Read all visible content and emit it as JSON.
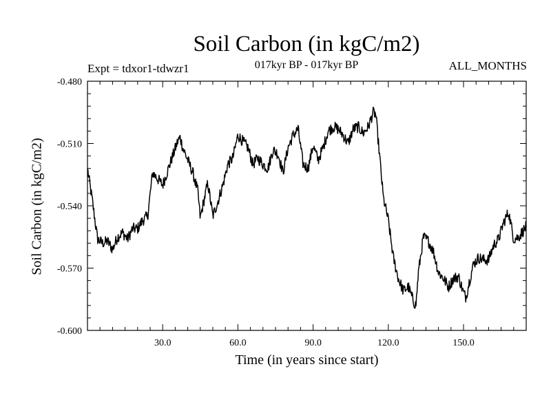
{
  "header": {
    "title": "Soil Carbon (in kgC/m2)",
    "expt": "Expt = tdxor1-tdwzr1",
    "period": "017kyr BP - 017kyr BP",
    "months": "ALL_MONTHS"
  },
  "chart_data": {
    "type": "line",
    "title": "Soil Carbon (in kgC/m2)",
    "xlabel": "Time (in years since start)",
    "ylabel": "Soil Carbon (in kgC/m2)",
    "xlim": [
      0,
      175
    ],
    "ylim": [
      -0.6,
      -0.48
    ],
    "x_ticks": [
      30,
      60,
      90,
      120,
      150
    ],
    "x_tick_labels": [
      "30.0",
      "60.0",
      "90.0",
      "120.0",
      "150.0"
    ],
    "y_ticks": [
      -0.48,
      -0.51,
      -0.54,
      -0.57,
      -0.6
    ],
    "y_tick_labels": [
      "-0.480",
      "-0.510",
      "-0.540",
      "-0.570",
      "-0.600"
    ],
    "line_color": "#000000",
    "series": [
      {
        "name": "Soil Carbon",
        "x": [
          0,
          2,
          4,
          6,
          8,
          10,
          12,
          14,
          16,
          18,
          20,
          22,
          24,
          26,
          28,
          30,
          32,
          34,
          36,
          37,
          38,
          40,
          42,
          44,
          45,
          46,
          48,
          50,
          52,
          54,
          56,
          58,
          60,
          62,
          64,
          66,
          68,
          70,
          72,
          74,
          76,
          78,
          80,
          82,
          84,
          86,
          88,
          90,
          92,
          94,
          96,
          98,
          100,
          102,
          104,
          106,
          108,
          110,
          112,
          114,
          115,
          116,
          118,
          120,
          122,
          124,
          126,
          128,
          130,
          131,
          132,
          134,
          136,
          138,
          140,
          142,
          144,
          146,
          148,
          150,
          151,
          152,
          154,
          156,
          158,
          160,
          162,
          164,
          166,
          168,
          170,
          172,
          175
        ],
        "values": [
          -0.522,
          -0.538,
          -0.556,
          -0.558,
          -0.557,
          -0.561,
          -0.555,
          -0.553,
          -0.556,
          -0.551,
          -0.551,
          -0.547,
          -0.545,
          -0.524,
          -0.527,
          -0.53,
          -0.523,
          -0.516,
          -0.509,
          -0.507,
          -0.512,
          -0.518,
          -0.524,
          -0.533,
          -0.546,
          -0.54,
          -0.529,
          -0.545,
          -0.538,
          -0.53,
          -0.52,
          -0.517,
          -0.506,
          -0.509,
          -0.512,
          -0.52,
          -0.517,
          -0.52,
          -0.522,
          -0.513,
          -0.515,
          -0.524,
          -0.512,
          -0.506,
          -0.503,
          -0.52,
          -0.522,
          -0.511,
          -0.518,
          -0.512,
          -0.504,
          -0.502,
          -0.503,
          -0.506,
          -0.51,
          -0.503,
          -0.502,
          -0.505,
          -0.502,
          -0.495,
          -0.496,
          -0.509,
          -0.536,
          -0.547,
          -0.565,
          -0.575,
          -0.581,
          -0.579,
          -0.586,
          -0.588,
          -0.572,
          -0.555,
          -0.557,
          -0.562,
          -0.572,
          -0.575,
          -0.579,
          -0.575,
          -0.574,
          -0.582,
          -0.584,
          -0.578,
          -0.568,
          -0.565,
          -0.566,
          -0.566,
          -0.559,
          -0.556,
          -0.548,
          -0.543,
          -0.556,
          -0.555,
          -0.55
        ]
      }
    ]
  }
}
